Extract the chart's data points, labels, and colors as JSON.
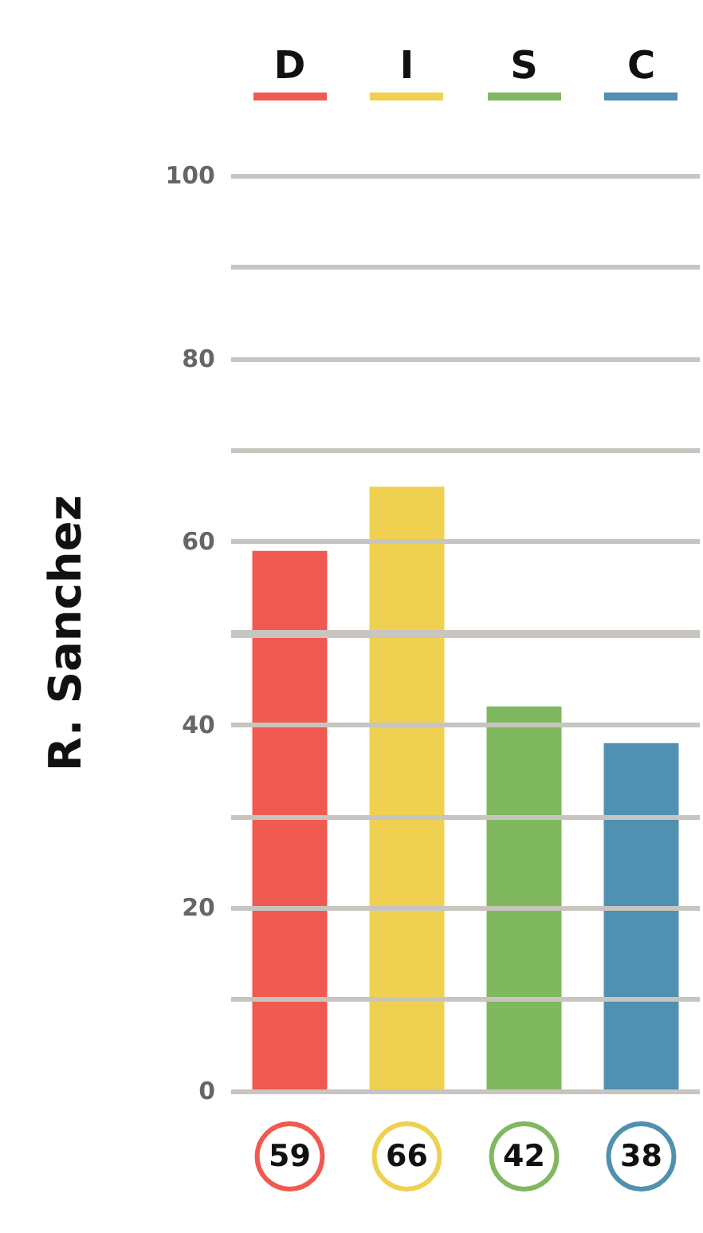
{
  "chart_data": {
    "type": "bar",
    "ylabel": "R. Sanchez",
    "categories": [
      "D",
      "I",
      "S",
      "C"
    ],
    "values": [
      59,
      66,
      42,
      38
    ],
    "colors": [
      "#f05a50",
      "#f0d050",
      "#80b860",
      "#5090b0"
    ],
    "ylim": [
      0,
      100
    ],
    "yticks": [
      0,
      {
        "value": 10,
        "label": null
      },
      20,
      {
        "value": 30,
        "label": null
      },
      40,
      {
        "value": 50,
        "label": null
      },
      60,
      {
        "value": 70,
        "label": null
      },
      80,
      {
        "value": 90,
        "label": null
      },
      100
    ],
    "ref_lines": [
      {
        "axis": "y",
        "value": 50,
        "color": "#c8c4c0"
      }
    ],
    "grid": "y",
    "data_labels": true
  }
}
